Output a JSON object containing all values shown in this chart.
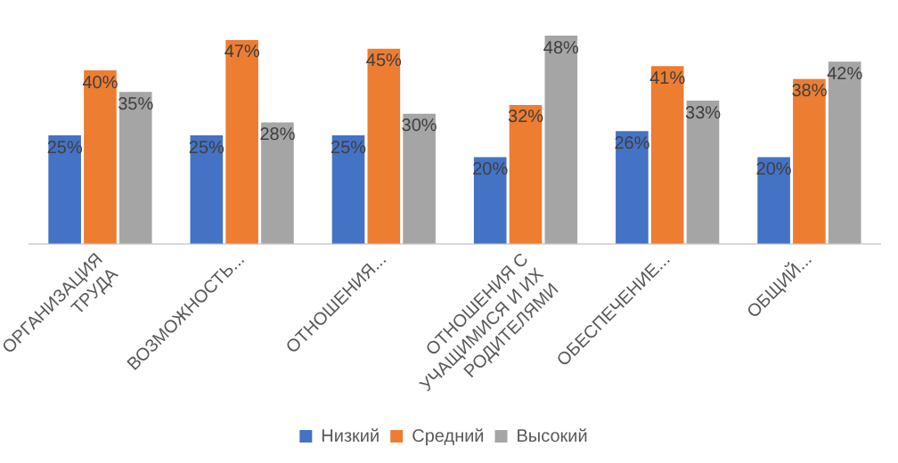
{
  "chart_data": {
    "type": "bar",
    "categories": [
      "ОРГАНИЗАЦИЯ ТРУДА",
      "ВОЗМОЖНОСТЬ...",
      "ОТНОШЕНИЯ...",
      "ОТНОШЕНИЯ С УЧАЩИМИСЯ И ИХ РОДИТЕЛЯМИ",
      "ОБЕСПЕЧЕНИЕ...",
      "ОБЩИЙ..."
    ],
    "series": [
      {
        "name": "Низкий",
        "color": "#4472c4",
        "values": [
          25,
          25,
          25,
          20,
          26,
          20
        ],
        "value_labels": [
          "25%",
          "25%",
          "25%",
          "20%",
          "26%",
          "20%"
        ]
      },
      {
        "name": "Средний",
        "color": "#ed7d31",
        "values": [
          40,
          47,
          45,
          32,
          41,
          38
        ],
        "value_labels": [
          "40%",
          "47%",
          "45%",
          "32%",
          "41%",
          "38%"
        ]
      },
      {
        "name": "Высокий",
        "color": "#a5a5a5",
        "values": [
          35,
          28,
          30,
          48,
          33,
          42
        ],
        "value_labels": [
          "35%",
          "28%",
          "30%",
          "48%",
          "33%",
          "42%"
        ]
      }
    ],
    "legend": "bottom",
    "grid": false
  }
}
